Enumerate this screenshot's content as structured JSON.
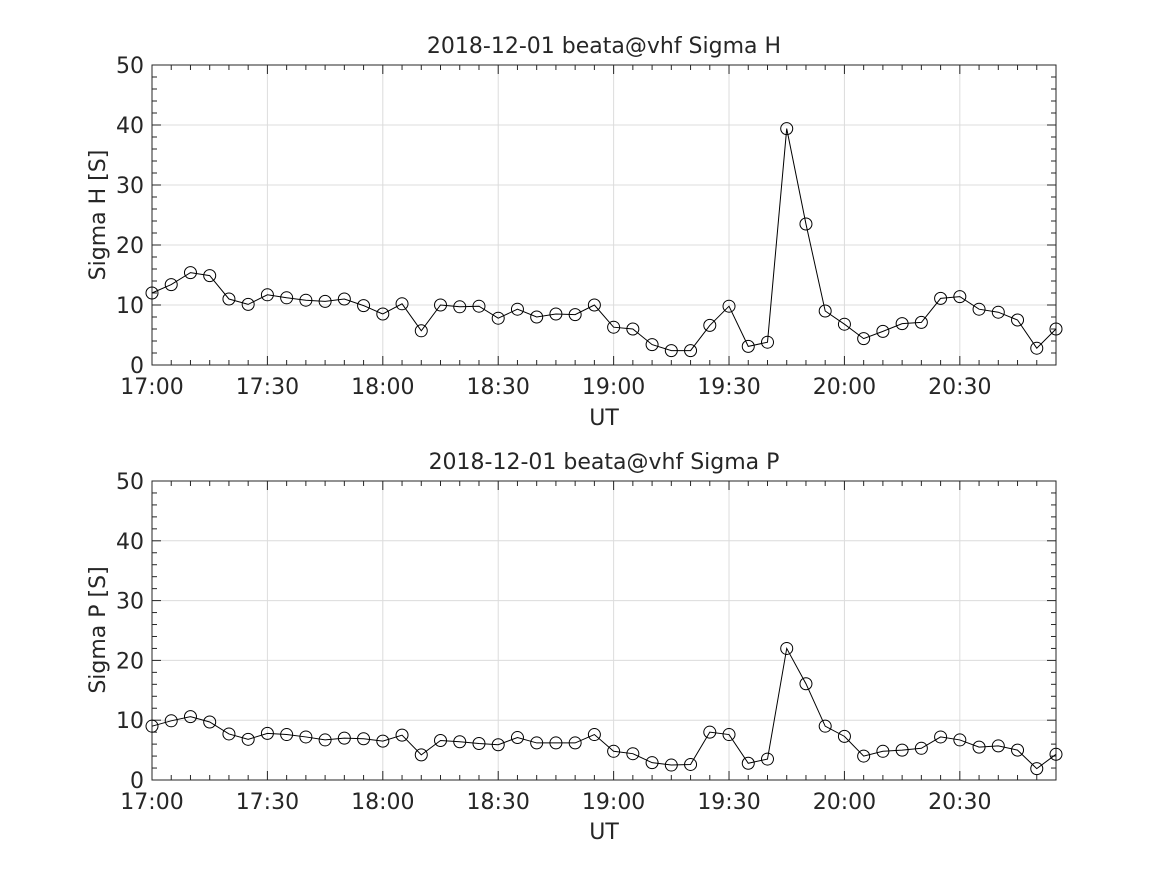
{
  "figure": {
    "background": "#ffffff",
    "grid": true,
    "colors": {
      "line": "#000000",
      "marker_edge": "#000000",
      "grid": "#dcdcdc",
      "axes": "#262626"
    }
  },
  "chart_data": [
    {
      "type": "line",
      "marker": "open-circle",
      "title": "2018-12-01  beata@vhf Sigma H",
      "xlabel": "UT",
      "ylabel": "Sigma H [S]",
      "x_ticks": [
        {
          "value": "17:00",
          "label": "17:00"
        },
        {
          "value": "17:30",
          "label": "17:30"
        },
        {
          "value": "18:00",
          "label": "18:00"
        },
        {
          "value": "18:30",
          "label": "18:30"
        },
        {
          "value": "19:00",
          "label": "19:00"
        },
        {
          "value": "19:30",
          "label": "19:30"
        },
        {
          "value": "20:00",
          "label": "20:00"
        },
        {
          "value": "20:30",
          "label": "20:30"
        }
      ],
      "xlim": [
        "17:00",
        "20:55"
      ],
      "ylim": [
        0,
        50
      ],
      "y_ticks": [
        0,
        10,
        20,
        30,
        40,
        50
      ],
      "x": [
        "17:00",
        "17:05",
        "17:10",
        "17:15",
        "17:20",
        "17:25",
        "17:30",
        "17:35",
        "17:40",
        "17:45",
        "17:50",
        "17:55",
        "18:00",
        "18:05",
        "18:10",
        "18:15",
        "18:20",
        "18:25",
        "18:30",
        "18:35",
        "18:40",
        "18:45",
        "18:50",
        "18:55",
        "19:00",
        "19:05",
        "19:10",
        "19:15",
        "19:20",
        "19:25",
        "19:30",
        "19:35",
        "19:40",
        "19:45",
        "19:50",
        "19:55",
        "20:00",
        "20:05",
        "20:10",
        "20:15",
        "20:20",
        "20:25",
        "20:30",
        "20:35",
        "20:40",
        "20:45",
        "20:50",
        "20:55"
      ],
      "series": [
        {
          "values": [
            12.0,
            13.4,
            15.4,
            14.9,
            11.0,
            10.1,
            11.7,
            11.2,
            10.8,
            10.6,
            11.0,
            9.9,
            8.5,
            10.2,
            5.7,
            10.0,
            9.7,
            9.8,
            7.8,
            9.3,
            8.0,
            8.5,
            8.4,
            10.0,
            6.3,
            6.0,
            3.4,
            2.4,
            2.4,
            6.6,
            9.8,
            3.1,
            3.8,
            39.4,
            23.5,
            9.0,
            6.8,
            4.4,
            5.6,
            6.9,
            7.1,
            11.1,
            11.4,
            9.3,
            8.8,
            7.5,
            2.8,
            6.0
          ]
        }
      ]
    },
    {
      "type": "line",
      "marker": "open-circle",
      "title": "2018-12-01  beata@vhf Sigma P",
      "xlabel": "UT",
      "ylabel": "Sigma P [S]",
      "x_ticks": [
        {
          "value": "17:00",
          "label": "17:00"
        },
        {
          "value": "17:30",
          "label": "17:30"
        },
        {
          "value": "18:00",
          "label": "18:00"
        },
        {
          "value": "18:30",
          "label": "18:30"
        },
        {
          "value": "19:00",
          "label": "19:00"
        },
        {
          "value": "19:30",
          "label": "19:30"
        },
        {
          "value": "20:00",
          "label": "20:00"
        },
        {
          "value": "20:30",
          "label": "20:30"
        }
      ],
      "xlim": [
        "17:00",
        "20:55"
      ],
      "ylim": [
        0,
        50
      ],
      "y_ticks": [
        0,
        10,
        20,
        30,
        40,
        50
      ],
      "x": [
        "17:00",
        "17:05",
        "17:10",
        "17:15",
        "17:20",
        "17:25",
        "17:30",
        "17:35",
        "17:40",
        "17:45",
        "17:50",
        "17:55",
        "18:00",
        "18:05",
        "18:10",
        "18:15",
        "18:20",
        "18:25",
        "18:30",
        "18:35",
        "18:40",
        "18:45",
        "18:50",
        "18:55",
        "19:00",
        "19:05",
        "19:10",
        "19:15",
        "19:20",
        "19:25",
        "19:30",
        "19:35",
        "19:40",
        "19:45",
        "19:50",
        "19:55",
        "20:00",
        "20:05",
        "20:10",
        "20:15",
        "20:20",
        "20:25",
        "20:30",
        "20:35",
        "20:40",
        "20:45",
        "20:50",
        "20:55"
      ],
      "series": [
        {
          "values": [
            9.0,
            9.9,
            10.6,
            9.7,
            7.7,
            6.8,
            7.8,
            7.6,
            7.2,
            6.7,
            7.0,
            6.9,
            6.5,
            7.5,
            4.2,
            6.6,
            6.4,
            6.1,
            5.9,
            7.1,
            6.2,
            6.2,
            6.2,
            7.6,
            4.8,
            4.4,
            2.9,
            2.5,
            2.6,
            8.0,
            7.6,
            2.8,
            3.5,
            22.0,
            16.1,
            9.0,
            7.3,
            4.0,
            4.8,
            5.0,
            5.3,
            7.2,
            6.7,
            5.5,
            5.7,
            5.0,
            1.9,
            4.3
          ]
        }
      ]
    }
  ]
}
